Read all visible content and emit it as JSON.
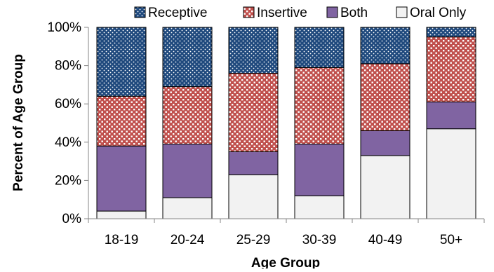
{
  "chart_data": {
    "type": "bar",
    "stacked": true,
    "percent_stacked": true,
    "xlabel": "Age Group",
    "ylabel": "Percent of Age Group",
    "categories": [
      "18-19",
      "20-24",
      "25-29",
      "30-39",
      "40-49",
      "50+"
    ],
    "ylim": [
      0,
      100
    ],
    "yticks": [
      "0%",
      "20%",
      "40%",
      "60%",
      "80%",
      "100%"
    ],
    "legend_position": "top",
    "series": [
      {
        "name": "Oral Only",
        "values": [
          4,
          11,
          23,
          12,
          33,
          47
        ],
        "color": "#f2f2f2",
        "pattern": "none"
      },
      {
        "name": "Both",
        "values": [
          34,
          28,
          12,
          27,
          13,
          14
        ],
        "color": "#8064a2",
        "pattern": "none"
      },
      {
        "name": "Insertive",
        "values": [
          26,
          30,
          41,
          40,
          35,
          34
        ],
        "color": "#c0504d",
        "pattern": "white-squares"
      },
      {
        "name": "Receptive",
        "values": [
          36,
          31,
          24,
          21,
          19,
          5
        ],
        "color": "#1f497d",
        "pattern": "white-dots"
      }
    ],
    "legend_order": [
      "Receptive",
      "Insertive",
      "Both",
      "Oral Only"
    ]
  }
}
